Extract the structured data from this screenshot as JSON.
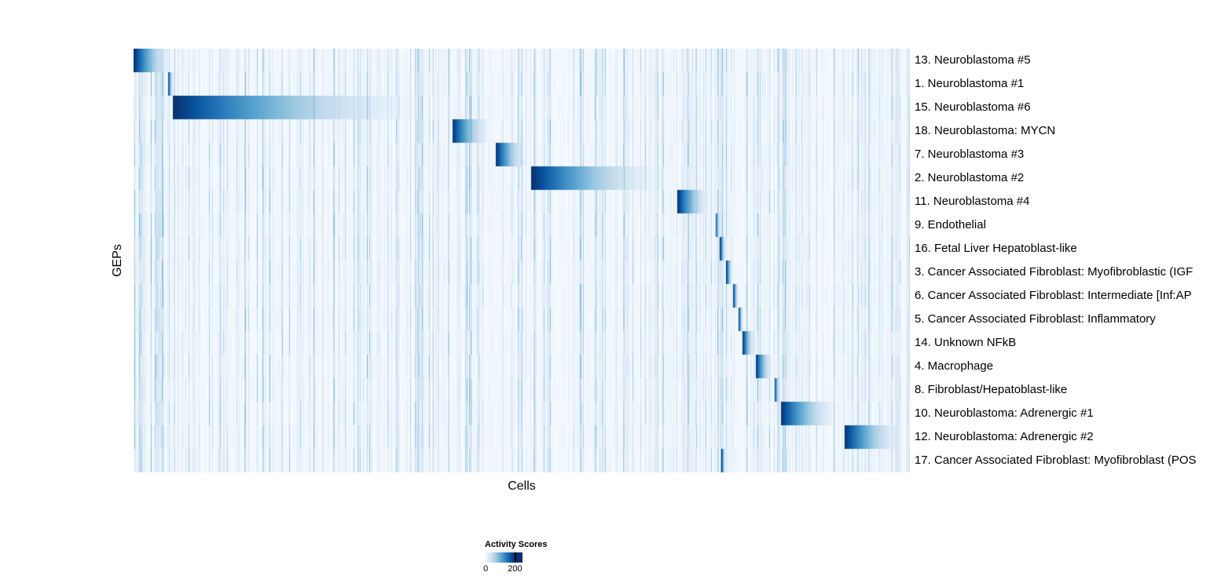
{
  "figure": {
    "xlabel": "Cells",
    "ylabel": "GEPs"
  },
  "legend": {
    "title": "Activity Scores",
    "min_label": "0",
    "max_label": "200"
  },
  "colors": {
    "background": "#ffffff",
    "text": "#000000",
    "scale_low": "#f7fbff",
    "scale_mid": "#6baed6",
    "scale_high": "#08306b"
  },
  "chart_data": {
    "type": "heatmap",
    "title": "",
    "xlabel": "Cells",
    "ylabel": "GEPs",
    "colormap": "Blues",
    "grid": false,
    "x_axis": {
      "description": "individual cells ordered by dominant GEP, no tick labels shown"
    },
    "colorbar": {
      "title": "Activity Scores",
      "min": 0,
      "max": 200,
      "clamped_above_max": true,
      "position": "bottom-left"
    },
    "rows": [
      {
        "label": "13. Neuroblastoma #5",
        "block_start": 0.0,
        "block_end": 0.056,
        "peak_value": 200
      },
      {
        "label": "1. Neuroblastoma #1",
        "block_start": 0.044,
        "block_end": 0.052,
        "peak_value": 200
      },
      {
        "label": "15. Neuroblastoma #6",
        "block_start": 0.05,
        "block_end": 0.41,
        "peak_value": 200
      },
      {
        "label": "18. Neuroblastoma: MYCN",
        "block_start": 0.41,
        "block_end": 0.466,
        "peak_value": 200
      },
      {
        "label": "7. Neuroblastoma #3",
        "block_start": 0.466,
        "block_end": 0.512,
        "peak_value": 200
      },
      {
        "label": "2. Neuroblastoma #2",
        "block_start": 0.512,
        "block_end": 0.7,
        "peak_value": 200
      },
      {
        "label": "11. Neuroblastoma #4",
        "block_start": 0.7,
        "block_end": 0.749,
        "peak_value": 200
      },
      {
        "label": "9. Endothelial",
        "block_start": 0.749,
        "block_end": 0.757,
        "peak_value": 200
      },
      {
        "label": "16. Fetal Liver Hepatoblast-like",
        "block_start": 0.755,
        "block_end": 0.764,
        "peak_value": 200
      },
      {
        "label": "3. Cancer Associated Fibroblast: Myofibroblastic (IGF",
        "block_start": 0.763,
        "block_end": 0.773,
        "peak_value": 200
      },
      {
        "label": "6. Cancer Associated Fibroblast: Intermediate [Inf:AP",
        "block_start": 0.772,
        "block_end": 0.78,
        "peak_value": 200
      },
      {
        "label": "5. Cancer Associated Fibroblast: Inflammatory",
        "block_start": 0.779,
        "block_end": 0.786,
        "peak_value": 200
      },
      {
        "label": "14. Unknown NFkB",
        "block_start": 0.784,
        "block_end": 0.802,
        "peak_value": 200
      },
      {
        "label": "4. Macrophage",
        "block_start": 0.801,
        "block_end": 0.826,
        "peak_value": 200
      },
      {
        "label": "8. Fibroblast/Hepatoblast-like",
        "block_start": 0.825,
        "block_end": 0.834,
        "peak_value": 200
      },
      {
        "label": "10. Neuroblastoma: Adrenergic #1",
        "block_start": 0.833,
        "block_end": 0.917,
        "peak_value": 200
      },
      {
        "label": "12. Neuroblastoma: Adrenergic #2",
        "block_start": 0.915,
        "block_end": 1.0,
        "peak_value": 200
      },
      {
        "label": "17. Cancer Associated Fibroblast: Myofibroblast (POS",
        "block_start": 0.757,
        "block_end": 0.763,
        "peak_value": 200
      }
    ]
  }
}
